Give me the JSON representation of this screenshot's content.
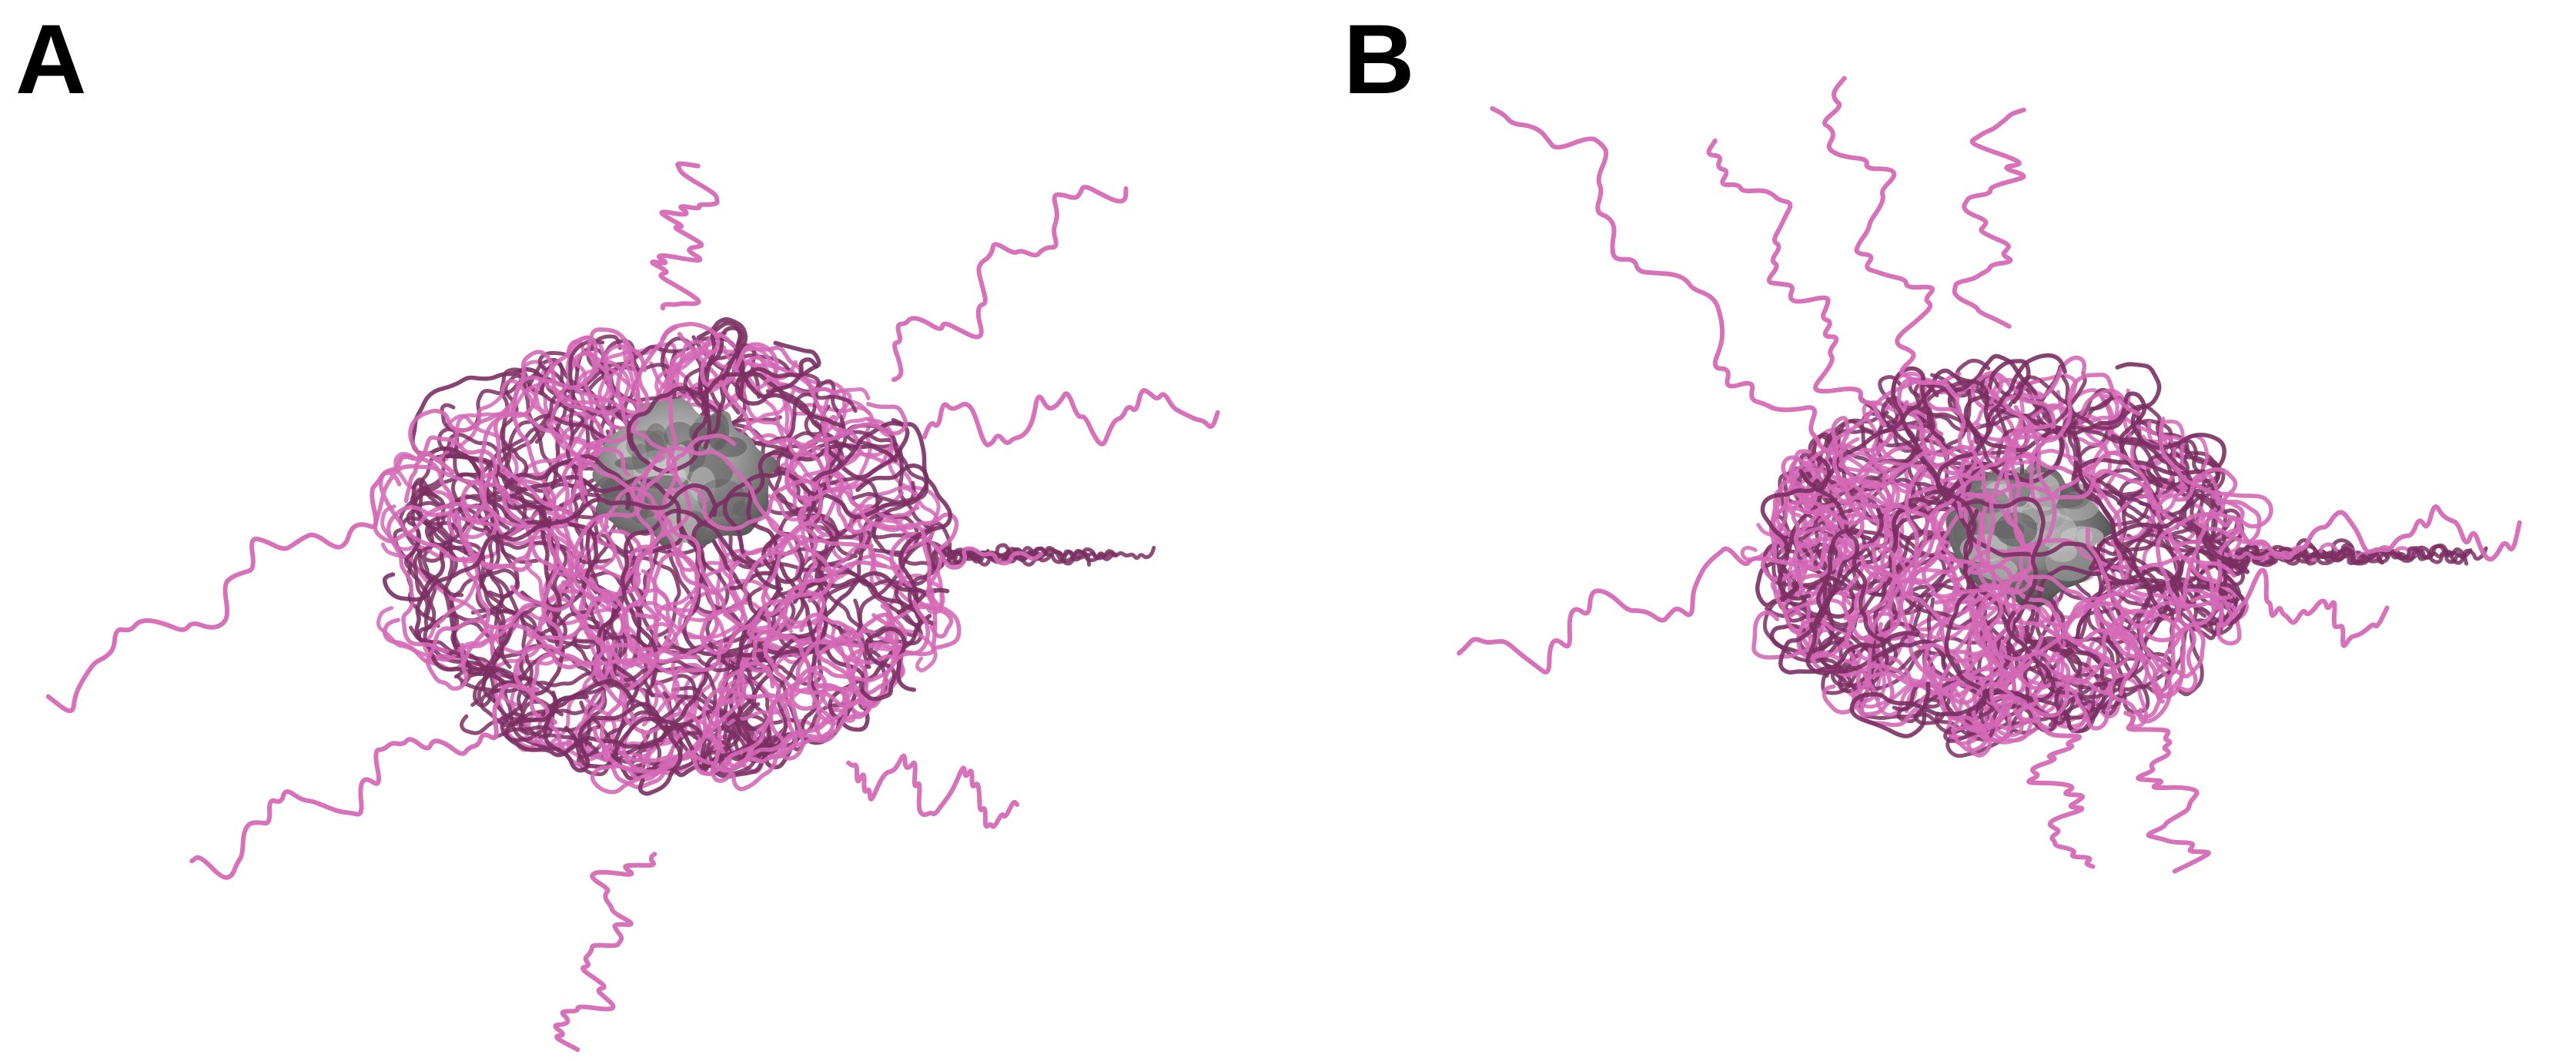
{
  "panels": [
    {
      "label": "A"
    },
    {
      "label": "B"
    }
  ],
  "colors": {
    "chain": "#d469b6",
    "chain_shade": "#7a2f62",
    "core": "#8e8e8e",
    "core_shadow": "#5e5e5e",
    "core_highlight": "#c9c9c9",
    "background": "#ffffff"
  }
}
